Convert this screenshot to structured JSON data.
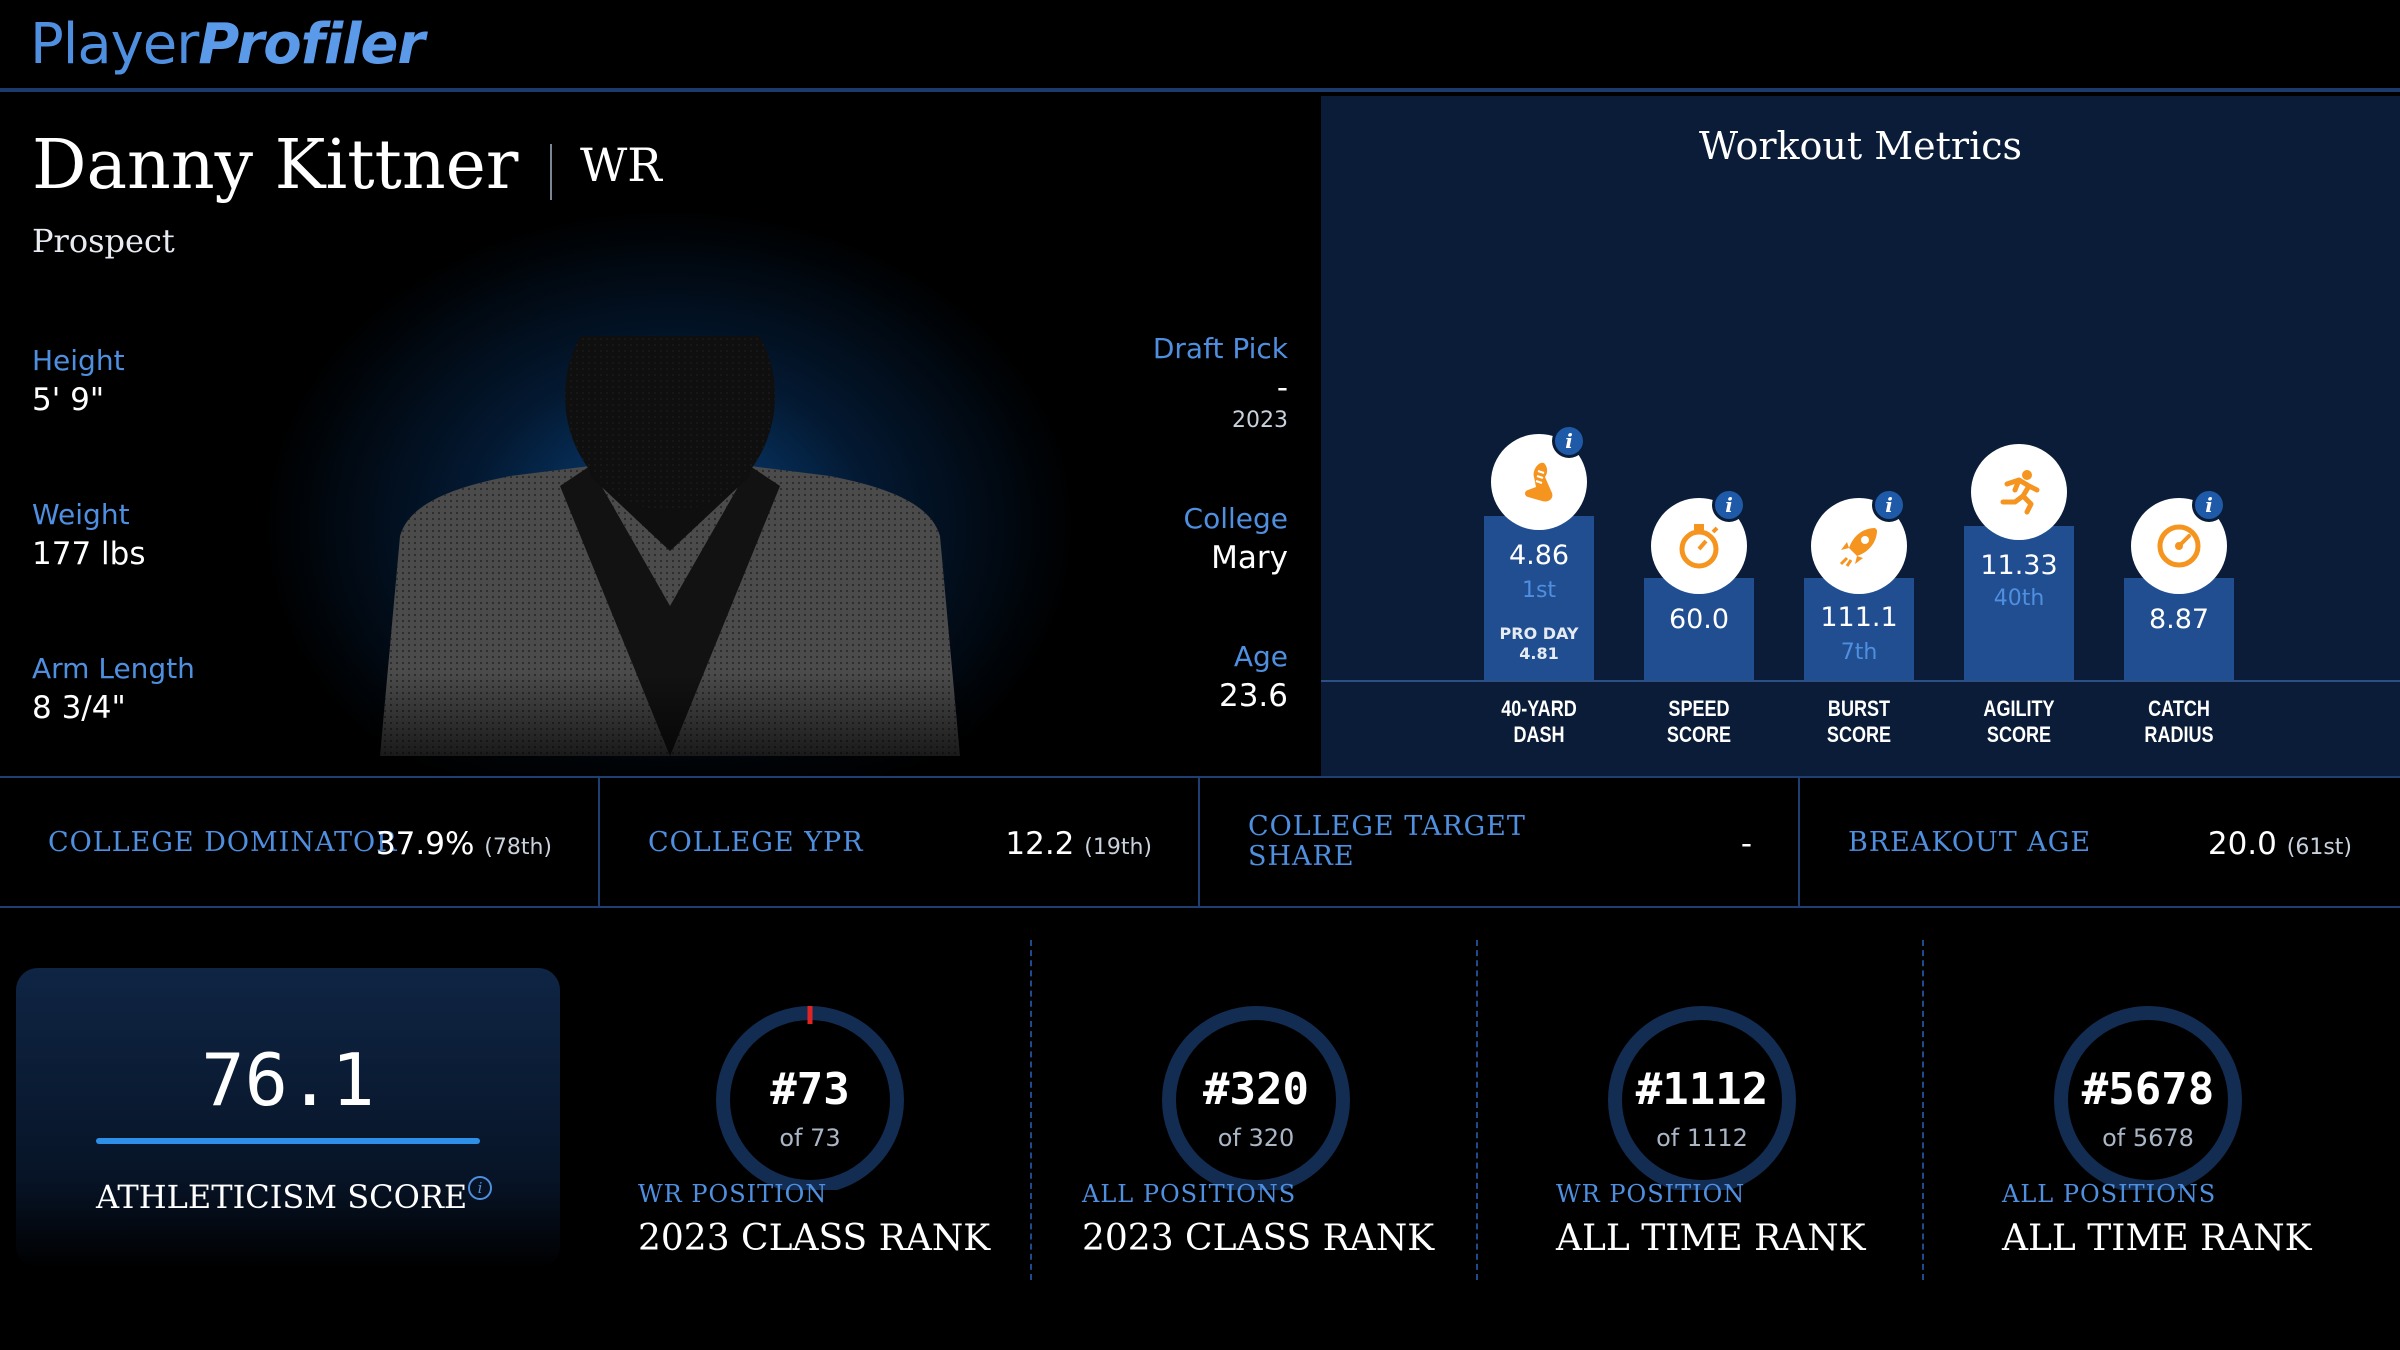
{
  "header": {
    "logo_part1": "Player",
    "logo_part2": "Profiler"
  },
  "player": {
    "name": "Danny Kittner",
    "position": "WR",
    "status": "Prospect",
    "height_label": "Height",
    "height": "5' 9\"",
    "weight_label": "Weight",
    "weight": "177 lbs",
    "arm_label": "Arm Length",
    "arm": "8 3/4\"",
    "draft_label": "Draft Pick",
    "draft": "-",
    "draft_year": "2023",
    "college_label": "College",
    "college": "Mary",
    "age_label": "Age",
    "age": "23.6"
  },
  "workout": {
    "title": "Workout Metrics",
    "metrics": [
      {
        "icon": "shoe-icon",
        "value": "4.86",
        "rank": "1st",
        "pro_label": "PRO DAY",
        "pro_value": "4.81",
        "line1": "40-YARD",
        "line2": "DASH",
        "info": "i"
      },
      {
        "icon": "stopwatch-icon",
        "value": "60.0",
        "rank": "",
        "line1": "SPEED",
        "line2": "SCORE",
        "info": "i"
      },
      {
        "icon": "rocket-icon",
        "value": "111.1",
        "rank": "7th",
        "line1": "BURST",
        "line2": "SCORE",
        "info": "i"
      },
      {
        "icon": "runner-icon",
        "value": "11.33",
        "rank": "40th",
        "line1": "AGILITY",
        "line2": "SCORE"
      },
      {
        "icon": "gauge-icon",
        "value": "8.87",
        "rank": "",
        "line1": "CATCH",
        "line2": "RADIUS",
        "info": "i"
      }
    ]
  },
  "college_stats": [
    {
      "label": "COLLEGE DOMINATOR",
      "value": "37.9%",
      "pct": "(78th)"
    },
    {
      "label": "COLLEGE YPR",
      "value": "12.2",
      "pct": "(19th)"
    },
    {
      "label_line1": "COLLEGE TARGET",
      "label_line2": "SHARE",
      "value": "-",
      "pct": ""
    },
    {
      "label": "BREAKOUT AGE",
      "value": "20.0",
      "pct": "(61st)"
    }
  ],
  "athleticism": {
    "score": "76.1",
    "label": "ATHLETICISM SCORE",
    "info": "i"
  },
  "ranks": [
    {
      "num": "#73",
      "of": "of 73",
      "category": "WR POSITION",
      "title": "2023 CLASS RANK",
      "fraction": 1.0
    },
    {
      "num": "#320",
      "of": "of 320",
      "category": "ALL POSITIONS",
      "title": "2023 CLASS RANK",
      "fraction": 1.0
    },
    {
      "num": "#1112",
      "of": "of 1112",
      "category": "WR POSITION",
      "title": "ALL TIME RANK",
      "fraction": 1.0
    },
    {
      "num": "#5678",
      "of": "of 5678",
      "category": "ALL POSITIONS",
      "title": "ALL TIME RANK",
      "fraction": 1.0
    }
  ],
  "colors": {
    "accent": "#4f8fe0",
    "workout_bg": "#0b1c38",
    "bar": "#214e90",
    "icon_orange": "#f5941f",
    "ring": "#132c52",
    "ring_marker": "#e02424"
  }
}
